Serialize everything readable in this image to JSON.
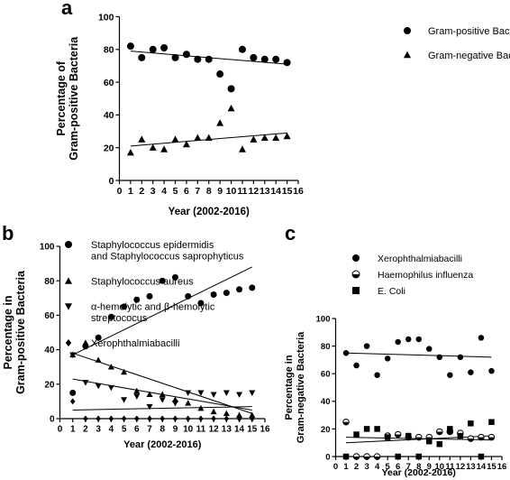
{
  "panel_labels": {
    "a": "a",
    "b": "b",
    "c": "c"
  },
  "chart_data": [
    {
      "id": "a",
      "type": "scatter",
      "xlabel": "Year (2002-2016)",
      "ylabel": [
        "Percentage of",
        "Gram-positive Bacteria"
      ],
      "xlim": [
        0,
        16
      ],
      "ylim": [
        0,
        100
      ],
      "xticks": [
        0,
        1,
        2,
        3,
        4,
        5,
        6,
        7,
        8,
        9,
        10,
        11,
        12,
        13,
        14,
        15,
        16
      ],
      "yticks": [
        0,
        20,
        40,
        60,
        80,
        100
      ],
      "legend_position": "right",
      "series": [
        {
          "name": "Gram-positive Bacteria",
          "marker": "circle",
          "x": [
            1,
            2,
            3,
            4,
            5,
            6,
            7,
            8,
            9,
            10,
            11,
            12,
            13,
            14,
            15
          ],
          "y": [
            82,
            75,
            80,
            81,
            75,
            77,
            74,
            74,
            65,
            56,
            80,
            75,
            74,
            74,
            72
          ],
          "trend": [
            79,
            71
          ]
        },
        {
          "name": "Gram-negative Bacteria",
          "marker": "triangle",
          "x": [
            1,
            2,
            3,
            4,
            5,
            6,
            7,
            8,
            9,
            10,
            11,
            12,
            13,
            14,
            15
          ],
          "y": [
            17,
            25,
            20,
            19,
            25,
            22,
            26,
            26,
            35,
            44,
            19,
            25,
            26,
            26,
            27
          ],
          "trend": [
            21,
            29
          ]
        }
      ]
    },
    {
      "id": "b",
      "type": "scatter",
      "xlabel": "Year (2002-2016)",
      "ylabel": [
        "Percentage in",
        "Gram-positive Bacteria"
      ],
      "xlim": [
        0,
        16
      ],
      "ylim": [
        0,
        100
      ],
      "xticks": [
        0,
        1,
        2,
        3,
        4,
        5,
        6,
        7,
        8,
        9,
        10,
        11,
        12,
        13,
        14,
        15,
        16
      ],
      "yticks": [
        0,
        20,
        40,
        60,
        80,
        100
      ],
      "legend_position": "top",
      "series": [
        {
          "name": "Staphylococcus epidermidis and Staphylococcus saprophyticus",
          "name_lines": [
            "Staphylococcus epidermidis",
            "and Staphylococcus saprophyticus"
          ],
          "marker": "circle",
          "x": [
            1,
            2,
            3,
            4,
            5,
            6,
            7,
            8,
            9,
            10,
            11,
            12,
            13,
            14,
            15
          ],
          "y": [
            15,
            42,
            47,
            59,
            65,
            69,
            71,
            80,
            82,
            71,
            67,
            72,
            73,
            75,
            76
          ],
          "trend": [
            37,
            88
          ]
        },
        {
          "name": "Staphylococcus aureus",
          "name_lines": [
            "Staphylococcus aureus"
          ],
          "marker": "triangle",
          "x": [
            1,
            2,
            3,
            4,
            5,
            6,
            7,
            8,
            9,
            10,
            11,
            12,
            13,
            14,
            15
          ],
          "y": [
            37,
            44,
            34,
            30,
            27,
            16,
            14,
            14,
            11,
            9,
            6,
            4,
            3,
            2,
            2
          ],
          "trend": [
            38,
            3
          ]
        },
        {
          "name": "α-hemolytic and β-hemolytic streptococus",
          "name_lines": [
            "α-hemolytic and β-hemolytic",
            "streptococus"
          ],
          "marker": "triangle-down",
          "x": [
            1,
            2,
            3,
            4,
            5,
            6,
            7,
            8,
            9,
            10,
            11,
            12,
            13,
            14,
            15
          ],
          "y": [
            37,
            21,
            19,
            18,
            11,
            13,
            7,
            11,
            9,
            15,
            15,
            14,
            15,
            14,
            15
          ],
          "trend": [
            23,
            5
          ]
        },
        {
          "name": "Xerophthalmiabacilli",
          "name_lines": [
            "Xerophthalmiabacilli"
          ],
          "marker": "diamond",
          "x": [
            1,
            2,
            3,
            4,
            5,
            6,
            7,
            8,
            9,
            10,
            11,
            12,
            13,
            14,
            15
          ],
          "y": [
            10,
            0,
            0,
            0,
            0,
            0,
            0,
            0,
            0,
            0,
            0,
            0,
            0,
            0,
            0
          ],
          "trend": [
            5,
            7
          ]
        }
      ]
    },
    {
      "id": "c",
      "type": "scatter",
      "xlabel": "Year (2002-2016)",
      "ylabel": [
        "Percentage in",
        "Gram-negative Bacteria"
      ],
      "xlim": [
        0,
        16
      ],
      "ylim": [
        0,
        100
      ],
      "xticks": [
        0,
        1,
        2,
        3,
        4,
        5,
        6,
        7,
        8,
        9,
        10,
        11,
        12,
        13,
        14,
        15,
        16
      ],
      "yticks": [
        0,
        20,
        40,
        60,
        80,
        100
      ],
      "legend_position": "top",
      "series": [
        {
          "name": "Xerophthalmiabacilli",
          "marker": "circle",
          "x": [
            1,
            2,
            3,
            4,
            5,
            6,
            7,
            8,
            9,
            10,
            11,
            12,
            13,
            14,
            15
          ],
          "y": [
            75,
            66,
            80,
            59,
            71,
            83,
            85,
            85,
            78,
            72,
            59,
            72,
            61,
            86,
            62
          ],
          "trend": [
            75,
            72
          ]
        },
        {
          "name": "Haemophilus influenza",
          "marker": "circle-half",
          "x": [
            1,
            2,
            3,
            4,
            5,
            6,
            7,
            8,
            9,
            10,
            11,
            12,
            13,
            14,
            15
          ],
          "y": [
            25,
            0,
            0,
            0,
            15,
            16,
            14,
            14,
            14,
            18,
            18,
            17,
            13,
            14,
            14
          ],
          "trend": [
            10,
            15
          ]
        },
        {
          "name": "E. Coli",
          "marker": "square",
          "x": [
            1,
            2,
            3,
            4,
            5,
            6,
            7,
            8,
            9,
            10,
            11,
            12,
            13,
            14,
            15
          ],
          "y": [
            0,
            16,
            20,
            20,
            14,
            0,
            15,
            0,
            11,
            9,
            20,
            15,
            24,
            0,
            25
          ],
          "trend": [
            14,
            12
          ]
        }
      ]
    }
  ]
}
